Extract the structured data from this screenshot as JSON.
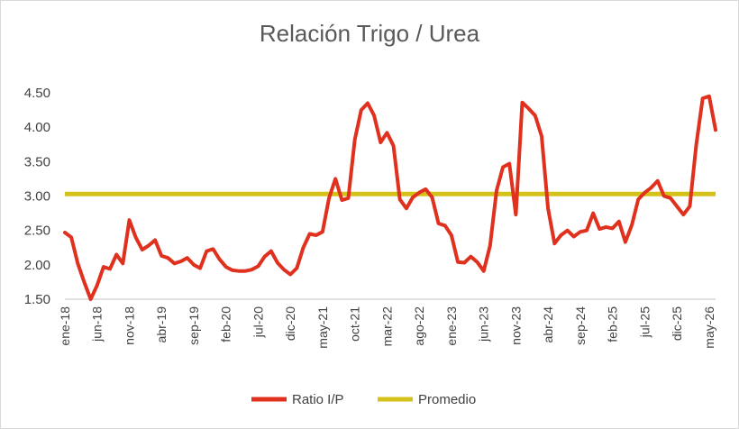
{
  "chart_data": {
    "type": "line",
    "title": "Relación Trigo / Urea",
    "xlabel": "",
    "ylabel": "",
    "ylim": [
      1.5,
      4.5
    ],
    "yticks": [
      "1.50",
      "2.00",
      "2.50",
      "3.00",
      "3.50",
      "4.00",
      "4.50"
    ],
    "grid": false,
    "legend_position": "bottom",
    "x_start": "2018-01",
    "xtick_labels": [
      "ene-18",
      "jun-18",
      "nov-18",
      "abr-19",
      "sep-19",
      "feb-20",
      "jul-20",
      "dic-20",
      "may-21",
      "oct-21",
      "mar-22",
      "ago-22",
      "ene-23",
      "jun-23",
      "nov-23",
      "abr-24",
      "sep-24",
      "feb-25",
      "jul-25",
      "dic-25",
      "may-26"
    ],
    "series": [
      {
        "name": "Ratio I/P",
        "color": "#e0301e",
        "values": [
          2.47,
          2.4,
          2.02,
          1.75,
          1.5,
          1.7,
          1.97,
          1.94,
          2.15,
          2.02,
          2.65,
          2.4,
          2.22,
          2.28,
          2.36,
          2.13,
          2.1,
          2.02,
          2.05,
          2.1,
          2.0,
          1.95,
          2.2,
          2.23,
          2.08,
          1.97,
          1.92,
          1.91,
          1.91,
          1.93,
          1.98,
          2.12,
          2.2,
          2.03,
          1.93,
          1.86,
          1.95,
          2.25,
          2.45,
          2.43,
          2.48,
          2.97,
          3.25,
          2.94,
          2.97,
          3.82,
          4.25,
          4.35,
          4.17,
          3.78,
          3.92,
          3.73,
          2.95,
          2.82,
          2.98,
          3.05,
          3.1,
          2.98,
          2.6,
          2.57,
          2.43,
          2.04,
          2.03,
          2.12,
          2.04,
          1.91,
          2.28,
          3.08,
          3.42,
          3.47,
          2.73,
          4.36,
          4.27,
          4.17,
          3.87,
          2.82,
          2.31,
          2.43,
          2.5,
          2.41,
          2.48,
          2.5,
          2.75,
          2.52,
          2.55,
          2.53,
          2.63,
          2.33,
          2.58,
          2.95,
          3.05,
          3.12,
          3.22,
          3.0,
          2.97,
          2.85,
          2.73,
          2.85,
          3.75,
          4.42,
          4.45,
          3.96
        ]
      },
      {
        "name": "Promedio",
        "color": "#d4c21a",
        "value": 3.03
      }
    ]
  }
}
